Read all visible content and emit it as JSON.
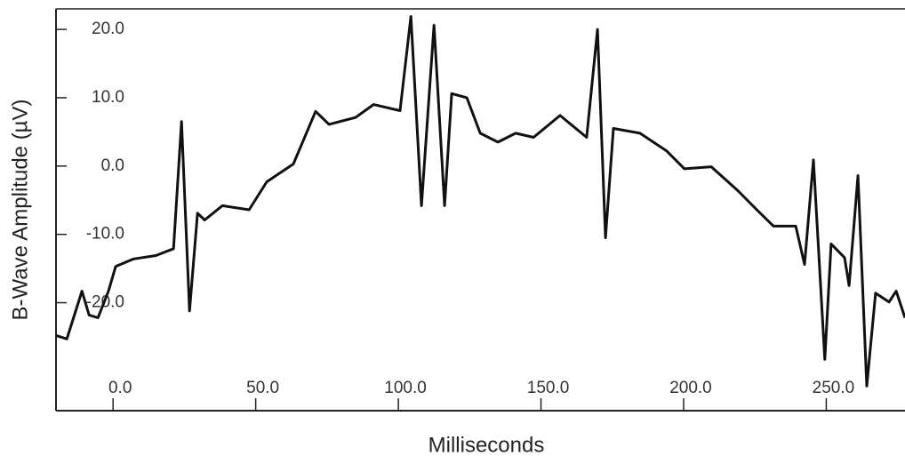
{
  "chart_data": {
    "type": "line",
    "x_label": "Milliseconds",
    "y_label": "B-Wave Amplitude (µV)",
    "color": "#111111",
    "xlim": [
      -20,
      277.6
    ],
    "ylim": [
      -35.8,
      23
    ],
    "xticks": [
      {
        "value": 0,
        "label": "0.0"
      },
      {
        "value": 50,
        "label": "50.0"
      },
      {
        "value": 100,
        "label": "100.0"
      },
      {
        "value": 150,
        "label": "150.0"
      },
      {
        "value": 200,
        "label": "200.0"
      },
      {
        "value": 250,
        "label": "250.0"
      }
    ],
    "yticks": [
      {
        "value": 20,
        "label": "20.0"
      },
      {
        "value": 10,
        "label": "10.0"
      },
      {
        "value": 0,
        "label": "0.0"
      },
      {
        "value": -10,
        "label": "-10.0"
      },
      {
        "value": -20,
        "label": "-20.0"
      }
    ],
    "x": [
      -20,
      -16.2,
      -10.9,
      -8.4,
      -5.3,
      -1.6,
      0.9,
      7.2,
      15,
      21.2,
      24,
      26.8,
      29.6,
      32.1,
      38.3,
      47.7,
      53.9,
      63.2,
      71,
      75.7,
      85,
      91.3,
      100.6,
      104.4,
      108.1,
      112.5,
      116.2,
      118.7,
      124,
      128.7,
      134.9,
      141.1,
      147.4,
      156.7,
      166,
      169.8,
      172.6,
      175.4,
      184.7,
      194.1,
      200.3,
      209.7,
      219,
      225.2,
      231.5,
      239.3,
      242.4,
      245.5,
      249.5,
      251.7,
      256.4,
      258,
      261.1,
      264.2,
      267.3,
      272,
      274.5,
      277.6
    ],
    "values": [
      -24.8,
      -25.3,
      -18.3,
      -21.8,
      -22.2,
      -18.3,
      -14.7,
      -13.6,
      -13.1,
      -12.1,
      6.5,
      -21.2,
      -6.9,
      -7.9,
      -5.8,
      -6.4,
      -2.3,
      0.3,
      8,
      6.1,
      7.1,
      9,
      8.1,
      21.9,
      -5.8,
      20.6,
      -5.8,
      10.6,
      10,
      4.8,
      3.5,
      4.8,
      4.2,
      7.4,
      4.2,
      20,
      -10.5,
      5.5,
      4.8,
      2.2,
      -0.4,
      -0.1,
      -3.6,
      -6.2,
      -8.8,
      -8.8,
      -14.4,
      0.9,
      -28.3,
      -11.4,
      -13.4,
      -17.5,
      -1.4,
      -32.2,
      -18.6,
      -19.9,
      -18.3,
      -22.2
    ]
  }
}
